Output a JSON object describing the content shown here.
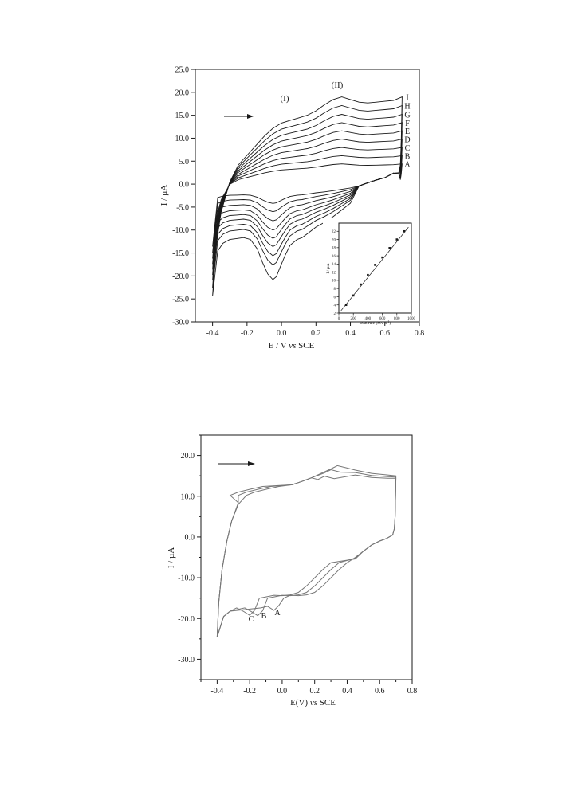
{
  "chart_data": [
    {
      "type": "line",
      "title": "",
      "xlabel": "E / V ",
      "xlabel_italic": "vs",
      "xlabel_tail": " SCE",
      "ylabel": "I / µA",
      "xlim": [
        -0.5,
        0.8
      ],
      "ylim": [
        -30,
        25
      ],
      "x_ticks": [
        "-0.4",
        "-0.2",
        "0.0",
        "0.2",
        "0.4",
        "0.6",
        "0.8"
      ],
      "y_ticks": [
        "25.0",
        "20.0",
        "15.0",
        "10.0",
        "5.0",
        "0.0",
        "-5.0",
        "-10.0",
        "-15.0",
        "-20.0",
        "-25.0",
        "-30.0"
      ],
      "annotations": [
        "(I)",
        "(II)"
      ],
      "arrow_direction": "right",
      "series": [
        {
          "name": "A",
          "anodic_peak": 4.4,
          "cathodic_peak": -4.2,
          "start": -13.6
        },
        {
          "name": "B",
          "anodic_peak": 6.2,
          "cathodic_peak": -6.0,
          "start": -15.0
        },
        {
          "name": "C",
          "anodic_peak": 8.0,
          "cathodic_peak": -8.0,
          "start": -16.2
        },
        {
          "name": "D",
          "anodic_peak": 9.8,
          "cathodic_peak": -10.0,
          "start": -17.4
        },
        {
          "name": "E",
          "anodic_peak": 11.6,
          "cathodic_peak": -11.8,
          "start": -18.6
        },
        {
          "name": "F",
          "anodic_peak": 13.4,
          "cathodic_peak": -13.6,
          "start": -19.8
        },
        {
          "name": "G",
          "anodic_peak": 15.2,
          "cathodic_peak": -15.6,
          "start": -21.0
        },
        {
          "name": "H",
          "anodic_peak": 17.1,
          "cathodic_peak": -17.6,
          "start": -22.6
        },
        {
          "name": "I",
          "anodic_peak": 19.0,
          "cathodic_peak": -20.8,
          "start": -24.4
        }
      ],
      "inset": {
        "type": "scatter",
        "xlabel": "scan rate (mV s",
        "xlabel_sup": "-1",
        "xlabel_tail": ")",
        "ylabel": "I / µA",
        "xlim": [
          0,
          1000
        ],
        "ylim": [
          2,
          24
        ],
        "x_ticks": [
          "0",
          "200",
          "400",
          "600",
          "800",
          "1000"
        ],
        "y_ticks": [
          "2",
          "4",
          "6",
          "8",
          "10",
          "12",
          "14",
          "16",
          "18",
          "20",
          "22"
        ],
        "points": [
          [
            100,
            4.0
          ],
          [
            200,
            6.3
          ],
          [
            300,
            9.0
          ],
          [
            400,
            11.3
          ],
          [
            500,
            13.8
          ],
          [
            600,
            15.6
          ],
          [
            700,
            17.9
          ],
          [
            800,
            20.0
          ],
          [
            900,
            22.0
          ]
        ],
        "fit_line": [
          [
            30,
            2.6
          ],
          [
            960,
            23.0
          ]
        ]
      }
    },
    {
      "type": "line",
      "title": "",
      "xlabel": "E(V) ",
      "xlabel_italic": "vs",
      "xlabel_tail": " SCE",
      "ylabel": "I / µA",
      "xlim": [
        -0.5,
        0.8
      ],
      "ylim": [
        -35,
        25
      ],
      "x_ticks": [
        "-0.4",
        "-0.2",
        "0.0",
        "0.2",
        "0.4",
        "0.6",
        "0.8"
      ],
      "y_ticks": [
        "20.0",
        "10.0",
        "0.0",
        "-10.0",
        "-20.0",
        "-30.0"
      ],
      "arrow_direction": "right",
      "series": [
        {
          "name": "A",
          "cathodic_peak_E": -0.05,
          "cathodic_peak_I": -18.0,
          "anodic_peak_E": 0.34,
          "anodic_peak_I": 17.5
        },
        {
          "name": "B",
          "cathodic_peak_E": -0.15,
          "cathodic_peak_I": -19.3,
          "anodic_peak_E": 0.3,
          "anodic_peak_I": 16.5
        },
        {
          "name": "C",
          "cathodic_peak_E": -0.2,
          "cathodic_peak_I": -19.2,
          "anodic_peak_E": 0.26,
          "anodic_peak_I": 14.9
        }
      ]
    }
  ],
  "colors": {
    "curve_top": "#1a1a1a",
    "curve_bottom": "#777777",
    "axis": "#1a1a1a"
  }
}
